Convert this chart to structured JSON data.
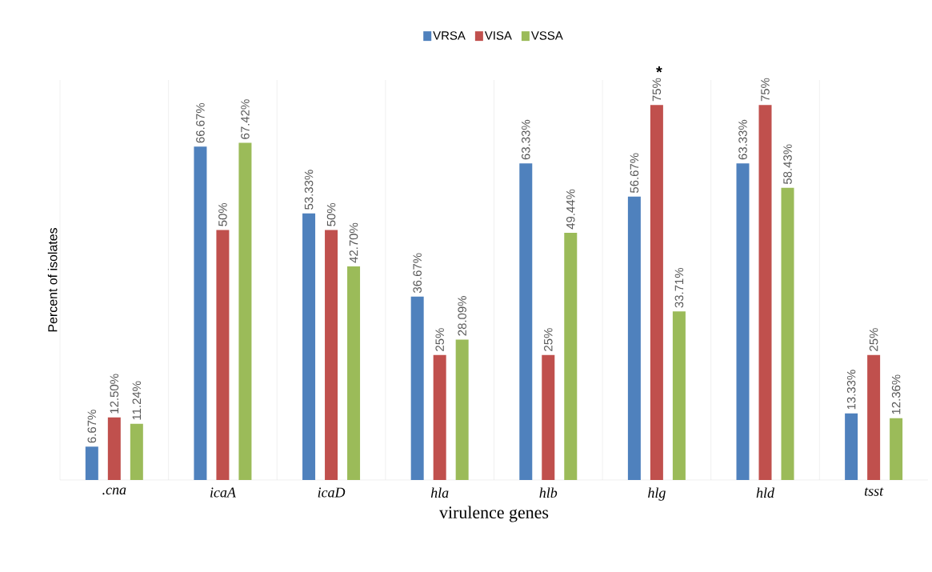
{
  "chart_data": {
    "type": "bar",
    "xlabel": "virulence genes",
    "ylabel": "Percent of isolates",
    "categories": [
      ".cna",
      "icaA",
      "icaD",
      "hla",
      "hlb",
      "hlg",
      "hld",
      "tsst"
    ],
    "series": [
      {
        "name": "VRSA",
        "color": "#4f81bd",
        "values": [
          6.67,
          66.67,
          53.33,
          36.67,
          63.33,
          56.67,
          63.33,
          13.33
        ],
        "value_labels": [
          "6.67%",
          "66.67%",
          "53.33%",
          "36.67%",
          "63.33%",
          "56.67%",
          "63.33%",
          "13.33%"
        ]
      },
      {
        "name": "VISA",
        "color": "#c0504d",
        "values": [
          12.5,
          50,
          50,
          25,
          25,
          75,
          75,
          25
        ],
        "value_labels": [
          "12.50%",
          "50%",
          "50%",
          "25%",
          "25%",
          "75%",
          "75%",
          "25%"
        ]
      },
      {
        "name": "VSSA",
        "color": "#9bbb59",
        "values": [
          11.24,
          67.42,
          42.7,
          28.09,
          49.44,
          33.71,
          58.43,
          12.36
        ],
        "value_labels": [
          "11.24%",
          "67.42%",
          "42.70%",
          "28.09%",
          "49.44%",
          "33.71%",
          "58.43%",
          "12.36%"
        ]
      }
    ],
    "annotations": [
      {
        "text": "*",
        "x": "hlg",
        "y": 75
      }
    ],
    "ylim": [
      0,
      80
    ],
    "grid": "x",
    "legend": "top",
    "tick_labels": "x"
  }
}
